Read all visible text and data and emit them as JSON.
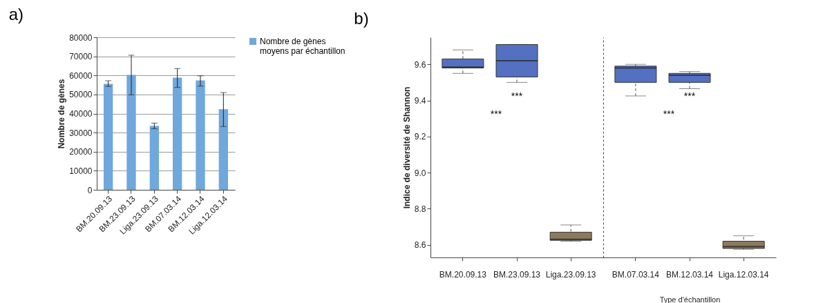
{
  "chart_data": [
    {
      "type": "bar",
      "title": "a)",
      "ylabel": "Nombre de gènes",
      "categories": [
        "BM.20.09.13",
        "BM.23.09.13",
        "Liga.23.09.13",
        "BM.07.03.14",
        "BM.12.03.14",
        "Liga.12.03.14"
      ],
      "series": [
        {
          "name": "Nombre de gènes moyens par échantillon",
          "color": "#6fa8dc",
          "values": [
            55600,
            60300,
            33500,
            58800,
            57400,
            42300
          ],
          "errors": [
            [
              54200,
              57200
            ],
            [
              49800,
              70600
            ],
            [
              32000,
              35000
            ],
            [
              53700,
              63600
            ],
            [
              54400,
              59800
            ],
            [
              33200,
              51000
            ]
          ]
        }
      ],
      "ylim": [
        0,
        80000
      ],
      "yticks": [
        0,
        10000,
        20000,
        30000,
        40000,
        50000,
        60000,
        70000,
        80000
      ],
      "grid": "y",
      "legend": "right"
    },
    {
      "type": "box",
      "title": "b)",
      "ylabel": "Indice de diversité de Shannon",
      "categories": [
        "BM.20.09.13",
        "BM.23.09.13",
        "Liga.23.09.13"
      ],
      "boxes": [
        {
          "low": 9.55,
          "q1": 9.58,
          "median": 9.585,
          "q3": 9.63,
          "high": 9.68
        },
        {
          "low": 9.5,
          "q1": 9.53,
          "median": 9.62,
          "q3": 9.71,
          "high": 9.71
        },
        {
          "low": 8.62,
          "q1": 8.625,
          "median": 8.63,
          "q3": 8.67,
          "high": 8.71
        }
      ],
      "colors": [
        "#5470c0",
        "#5470c0",
        "#8b7a5c"
      ],
      "ylim": [
        8.53,
        9.75
      ],
      "yticks": [
        8.6,
        8.8,
        {
          "value": 9,
          "label": "9.0"
        },
        9.2,
        9.4,
        9.6
      ],
      "annotations": [
        "***",
        "***"
      ]
    },
    {
      "type": "box",
      "xlabel": "Type d'échantillon",
      "categories": [
        "BM.07.03.14",
        "BM.12.03.14",
        "Liga.12.03.14"
      ],
      "boxes": [
        {
          "low": 9.425,
          "q1": 9.5,
          "median": 9.58,
          "q3": 9.59,
          "high": 9.6
        },
        {
          "low": 9.465,
          "q1": 9.5,
          "median": 9.54,
          "q3": 9.55,
          "high": 9.56
        },
        {
          "low": 8.575,
          "q1": 8.58,
          "median": 8.59,
          "q3": 8.62,
          "high": 8.65
        }
      ],
      "colors": [
        "#5470c0",
        "#5470c0",
        "#8b7a5c"
      ],
      "ylim": [
        8.53,
        9.75
      ],
      "tick_labels": "x",
      "annotations": [
        "***",
        "***"
      ]
    }
  ]
}
